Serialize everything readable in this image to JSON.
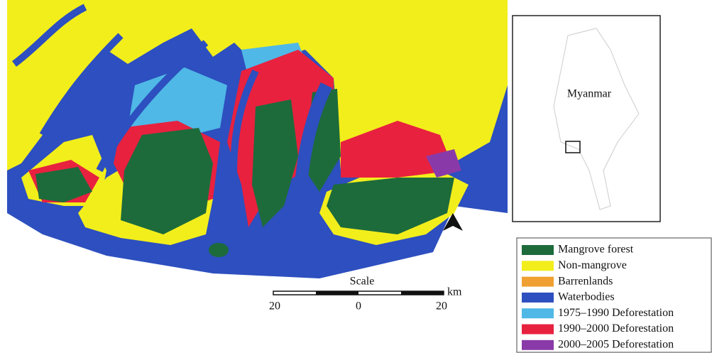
{
  "map": {
    "inset_label": "Myanmar",
    "scale": {
      "title": "Scale",
      "unit": "km",
      "ticks": [
        "20",
        "0",
        "20"
      ]
    },
    "legend": [
      {
        "label": "Mangrove forest",
        "color": "#1d6b3b"
      },
      {
        "label": "Non-mangrove",
        "color": "#f2ee1c"
      },
      {
        "label": "Barrenlands",
        "color": "#f0a030"
      },
      {
        "label": "Waterbodies",
        "color": "#2d4fbf"
      },
      {
        "label": "1975–1990 Deforestation",
        "color": "#4fb8e6"
      },
      {
        "label": "1990–2000 Deforestation",
        "color": "#e8213f"
      },
      {
        "label": "2000–2005 Deforestation",
        "color": "#8a3aa8"
      }
    ]
  }
}
